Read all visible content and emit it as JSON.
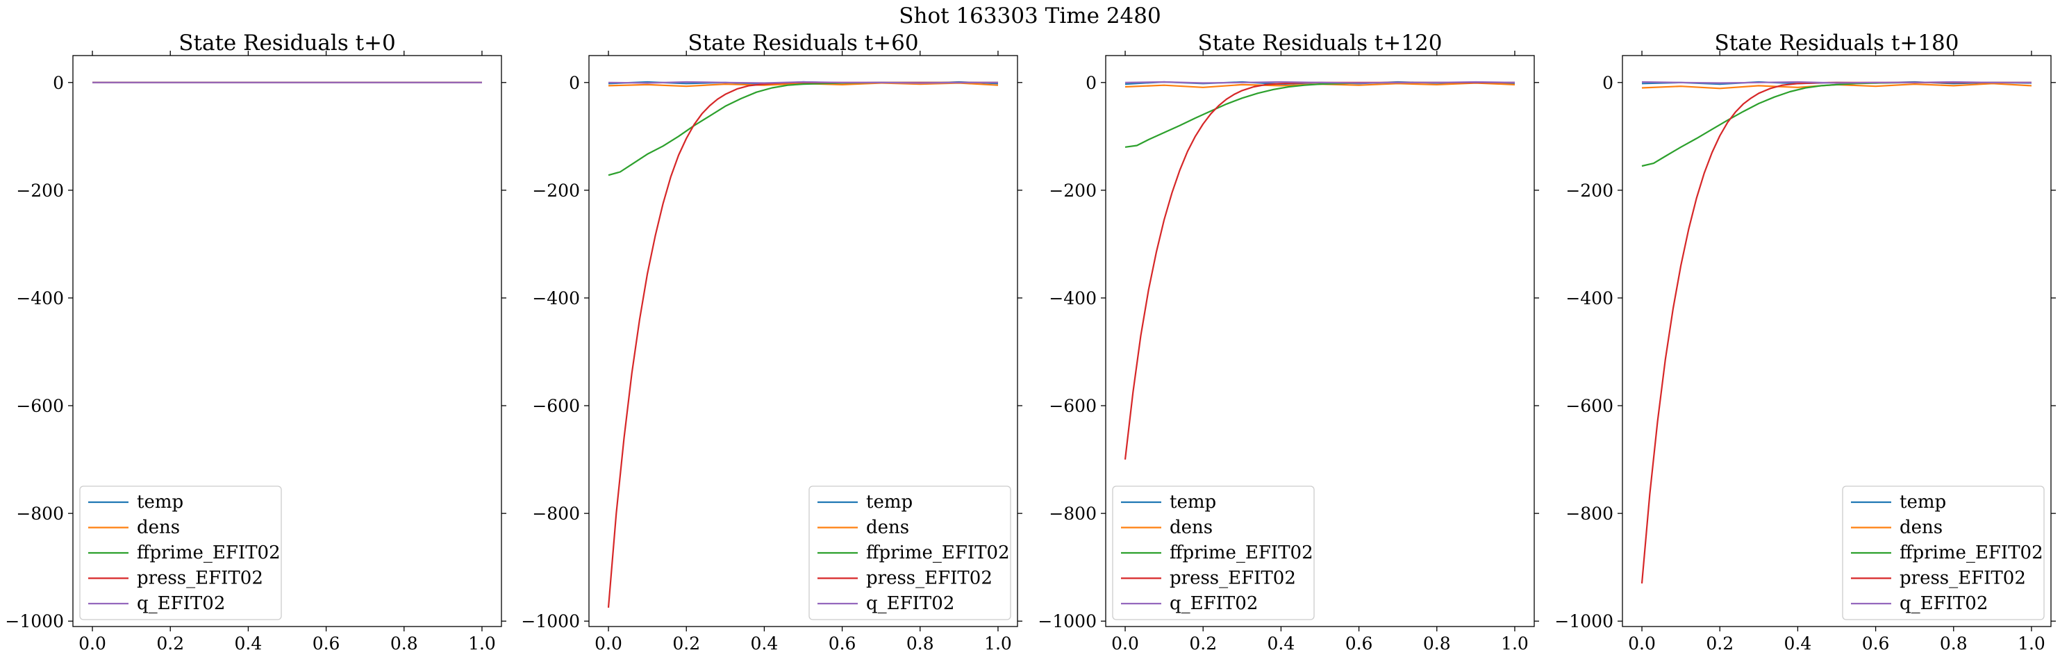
{
  "figure": {
    "suptitle": "Shot 163303   Time 2480"
  },
  "colors": {
    "temp": "#1f77b4",
    "dens": "#ff7f0e",
    "ffprime_EFIT02": "#2ca02c",
    "press_EFIT02": "#d62728",
    "q_EFIT02": "#9467bd"
  },
  "chart_data": [
    {
      "type": "line",
      "title": "State Residuals t+0",
      "xlim": [
        -0.05,
        1.05
      ],
      "ylim": [
        -1010,
        50
      ],
      "xticks": [
        0.0,
        0.2,
        0.4,
        0.6,
        0.8,
        1.0
      ],
      "yticks": [
        0,
        -200,
        -400,
        -600,
        -800,
        -1000
      ],
      "legend": [
        "temp",
        "dens",
        "ffprime_EFIT02",
        "press_EFIT02",
        "q_EFIT02"
      ],
      "legend_loc": "lower left",
      "series": [
        {
          "name": "temp",
          "x": [
            0,
            1
          ],
          "y": [
            0,
            0
          ]
        },
        {
          "name": "dens",
          "x": [
            0,
            1
          ],
          "y": [
            0,
            0
          ]
        },
        {
          "name": "ffprime_EFIT02",
          "x": [
            0,
            1
          ],
          "y": [
            0,
            0
          ]
        },
        {
          "name": "press_EFIT02",
          "x": [
            0,
            1
          ],
          "y": [
            0,
            0
          ]
        },
        {
          "name": "q_EFIT02",
          "x": [
            0,
            1
          ],
          "y": [
            0,
            0
          ]
        }
      ]
    },
    {
      "type": "line",
      "title": "State Residuals t+60",
      "xlim": [
        -0.05,
        1.05
      ],
      "ylim": [
        -1010,
        50
      ],
      "xticks": [
        0.0,
        0.2,
        0.4,
        0.6,
        0.8,
        1.0
      ],
      "yticks": [
        0,
        -200,
        -400,
        -600,
        -800,
        -1000
      ],
      "legend": [
        "temp",
        "dens",
        "ffprime_EFIT02",
        "press_EFIT02",
        "q_EFIT02"
      ],
      "legend_loc": "lower right",
      "series": [
        {
          "name": "temp",
          "x": [
            0,
            0.1,
            0.2,
            0.3,
            0.4,
            0.5,
            0.6,
            0.7,
            0.8,
            0.9,
            1.0
          ],
          "y": [
            -2,
            1,
            -2,
            0,
            -3,
            1,
            -1,
            0,
            -2,
            1,
            -2
          ]
        },
        {
          "name": "dens",
          "x": [
            0,
            0.1,
            0.2,
            0.3,
            0.4,
            0.5,
            0.6,
            0.7,
            0.8,
            0.9,
            1.0
          ],
          "y": [
            -6,
            -4,
            -7,
            -3,
            -5,
            -2,
            -4,
            -1,
            -3,
            -1,
            -5
          ]
        },
        {
          "name": "ffprime_EFIT02",
          "x": [
            0,
            0.03,
            0.06,
            0.1,
            0.14,
            0.18,
            0.22,
            0.26,
            0.3,
            0.34,
            0.38,
            0.42,
            0.46,
            0.5,
            0.55,
            0.6,
            0.7,
            0.8,
            0.9,
            1.0
          ],
          "y": [
            -172,
            -166,
            -152,
            -133,
            -118,
            -100,
            -80,
            -62,
            -44,
            -30,
            -18,
            -10,
            -5,
            -3,
            -2,
            -1,
            0,
            0,
            0,
            0
          ]
        },
        {
          "name": "press_EFIT02",
          "x": [
            0,
            0.02,
            0.04,
            0.06,
            0.08,
            0.1,
            0.12,
            0.14,
            0.16,
            0.18,
            0.2,
            0.22,
            0.24,
            0.26,
            0.28,
            0.3,
            0.33,
            0.36,
            0.4,
            0.44,
            0.48,
            0.52,
            0.56,
            0.6,
            0.7,
            0.8,
            0.9,
            1.0
          ],
          "y": [
            -975,
            -800,
            -660,
            -540,
            -440,
            -355,
            -285,
            -225,
            -175,
            -135,
            -104,
            -78,
            -58,
            -43,
            -31,
            -22,
            -12,
            -6,
            -3,
            -1,
            0,
            0,
            0,
            0,
            0,
            0,
            0,
            0
          ]
        },
        {
          "name": "q_EFIT02",
          "x": [
            0,
            0.1,
            0.2,
            0.3,
            0.4,
            0.5,
            0.6,
            0.7,
            0.8,
            0.9,
            1.0
          ],
          "y": [
            0,
            -1,
            1,
            0,
            -1,
            1,
            0,
            0,
            -1,
            0,
            0
          ]
        }
      ]
    },
    {
      "type": "line",
      "title": "State Residuals t+120",
      "xlim": [
        -0.05,
        1.05
      ],
      "ylim": [
        -1010,
        50
      ],
      "xticks": [
        0.0,
        0.2,
        0.4,
        0.6,
        0.8,
        1.0
      ],
      "yticks": [
        0,
        -200,
        -400,
        -600,
        -800,
        -1000
      ],
      "legend": [
        "temp",
        "dens",
        "ffprime_EFIT02",
        "press_EFIT02",
        "q_EFIT02"
      ],
      "legend_loc": "lower left",
      "series": [
        {
          "name": "temp",
          "x": [
            0,
            0.1,
            0.2,
            0.3,
            0.4,
            0.5,
            0.6,
            0.7,
            0.8,
            0.9,
            1.0
          ],
          "y": [
            -3,
            1,
            -2,
            1,
            -3,
            0,
            -2,
            1,
            -1,
            0,
            -2
          ]
        },
        {
          "name": "dens",
          "x": [
            0,
            0.1,
            0.2,
            0.3,
            0.4,
            0.5,
            0.6,
            0.7,
            0.8,
            0.9,
            1.0
          ],
          "y": [
            -8,
            -5,
            -9,
            -4,
            -6,
            -3,
            -5,
            -2,
            -4,
            -1,
            -4
          ]
        },
        {
          "name": "ffprime_EFIT02",
          "x": [
            0,
            0.03,
            0.06,
            0.1,
            0.14,
            0.18,
            0.22,
            0.26,
            0.3,
            0.34,
            0.38,
            0.42,
            0.46,
            0.5,
            0.55,
            0.6,
            0.7,
            0.8,
            0.9,
            1.0
          ],
          "y": [
            -120,
            -117,
            -106,
            -93,
            -80,
            -66,
            -53,
            -40,
            -29,
            -20,
            -13,
            -8,
            -5,
            -3,
            -2,
            -1,
            0,
            0,
            0,
            0
          ]
        },
        {
          "name": "press_EFIT02",
          "x": [
            0,
            0.02,
            0.04,
            0.06,
            0.08,
            0.1,
            0.12,
            0.14,
            0.16,
            0.18,
            0.2,
            0.22,
            0.24,
            0.26,
            0.28,
            0.3,
            0.33,
            0.36,
            0.4,
            0.44,
            0.48,
            0.52,
            0.56,
            0.6,
            0.7,
            0.8,
            0.9,
            1.0
          ],
          "y": [
            -700,
            -575,
            -470,
            -385,
            -315,
            -255,
            -205,
            -163,
            -128,
            -100,
            -77,
            -58,
            -43,
            -31,
            -22,
            -15,
            -8,
            -4,
            -2,
            -1,
            0,
            0,
            0,
            0,
            0,
            0,
            0,
            0
          ]
        },
        {
          "name": "q_EFIT02",
          "x": [
            0,
            0.1,
            0.2,
            0.3,
            0.4,
            0.5,
            0.6,
            0.7,
            0.8,
            0.9,
            1.0
          ],
          "y": [
            0,
            1,
            -1,
            0,
            1,
            0,
            -1,
            0,
            0,
            1,
            0
          ]
        }
      ]
    },
    {
      "type": "line",
      "title": "State Residuals t+180",
      "xlim": [
        -0.05,
        1.05
      ],
      "ylim": [
        -1010,
        50
      ],
      "xticks": [
        0.0,
        0.2,
        0.4,
        0.6,
        0.8,
        1.0
      ],
      "yticks": [
        0,
        -200,
        -400,
        -600,
        -800,
        -1000
      ],
      "legend": [
        "temp",
        "dens",
        "ffprime_EFIT02",
        "press_EFIT02",
        "q_EFIT02"
      ],
      "legend_loc": "lower right",
      "series": [
        {
          "name": "temp",
          "x": [
            0,
            0.1,
            0.2,
            0.3,
            0.4,
            0.5,
            0.6,
            0.7,
            0.8,
            0.9,
            1.0
          ],
          "y": [
            -2,
            0,
            -3,
            1,
            -2,
            0,
            -1,
            1,
            -2,
            0,
            -1
          ]
        },
        {
          "name": "dens",
          "x": [
            0,
            0.1,
            0.2,
            0.3,
            0.4,
            0.5,
            0.6,
            0.7,
            0.8,
            0.9,
            1.0
          ],
          "y": [
            -10,
            -7,
            -11,
            -6,
            -9,
            -4,
            -7,
            -3,
            -6,
            -2,
            -6
          ]
        },
        {
          "name": "ffprime_EFIT02",
          "x": [
            0,
            0.03,
            0.06,
            0.1,
            0.14,
            0.18,
            0.22,
            0.26,
            0.3,
            0.34,
            0.38,
            0.42,
            0.46,
            0.5,
            0.55,
            0.6,
            0.7,
            0.8,
            0.9,
            1.0
          ],
          "y": [
            -155,
            -150,
            -137,
            -120,
            -104,
            -87,
            -70,
            -54,
            -39,
            -27,
            -17,
            -10,
            -6,
            -4,
            -2,
            -1,
            0,
            0,
            0,
            0
          ]
        },
        {
          "name": "press_EFIT02",
          "x": [
            0,
            0.02,
            0.04,
            0.06,
            0.08,
            0.1,
            0.12,
            0.14,
            0.16,
            0.18,
            0.2,
            0.22,
            0.24,
            0.26,
            0.28,
            0.3,
            0.33,
            0.36,
            0.4,
            0.44,
            0.48,
            0.52,
            0.56,
            0.6,
            0.7,
            0.8,
            0.9,
            1.0
          ],
          "y": [
            -930,
            -765,
            -630,
            -515,
            -420,
            -340,
            -272,
            -215,
            -168,
            -130,
            -99,
            -74,
            -55,
            -40,
            -29,
            -20,
            -11,
            -5,
            -2,
            -1,
            0,
            0,
            0,
            0,
            0,
            0,
            0,
            0
          ]
        },
        {
          "name": "q_EFIT02",
          "x": [
            0,
            0.1,
            0.2,
            0.3,
            0.4,
            0.5,
            0.6,
            0.7,
            0.8,
            0.9,
            1.0
          ],
          "y": [
            1,
            0,
            -1,
            0,
            1,
            -1,
            0,
            0,
            1,
            0,
            0
          ]
        }
      ]
    }
  ]
}
